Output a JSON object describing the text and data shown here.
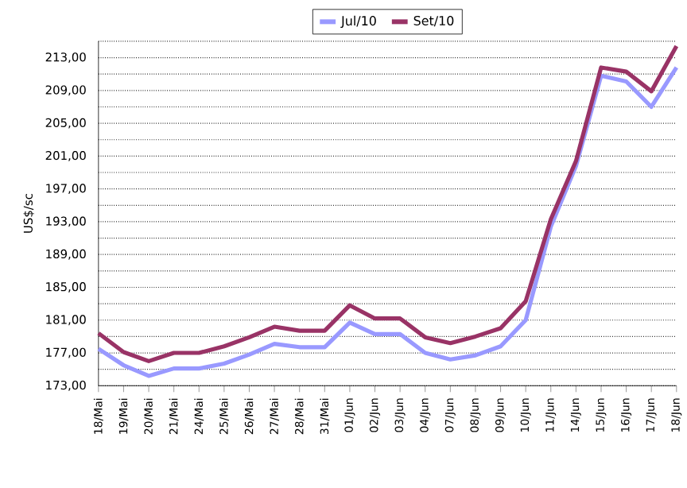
{
  "chart_data": {
    "type": "line",
    "ylabel": "US$/sc",
    "categories": [
      "18/Mai",
      "19/Mai",
      "20/Mai",
      "21/Mai",
      "24/Mai",
      "25/Mai",
      "26/Mai",
      "27/Mai",
      "28/Mai",
      "31/Mai",
      "01/Jun",
      "02/Jun",
      "03/Jun",
      "04/Jun",
      "07/Jun",
      "08/Jun",
      "09/Jun",
      "10/Jun",
      "11/Jun",
      "14/Jun",
      "15/Jun",
      "16/Jun",
      "17/Jun",
      "18/Jun"
    ],
    "series": [
      {
        "name": "Jul/10",
        "color": "#9999ff",
        "values": [
          177.5,
          175.5,
          174.2,
          175.1,
          175.1,
          175.7,
          176.8,
          178.1,
          177.7,
          177.7,
          180.7,
          179.3,
          179.3,
          177.0,
          176.2,
          176.7,
          177.8,
          181.0,
          192.4,
          199.8,
          210.8,
          210.1,
          207.0,
          211.8
        ]
      },
      {
        "name": "Set/10",
        "color": "#993366",
        "values": [
          179.4,
          177.1,
          176.0,
          177.0,
          177.0,
          177.8,
          178.9,
          180.2,
          179.7,
          179.7,
          182.8,
          181.2,
          181.2,
          178.9,
          178.2,
          179.0,
          180.0,
          183.3,
          193.3,
          200.4,
          211.8,
          211.3,
          208.9,
          214.4
        ]
      }
    ],
    "ylim": [
      173,
      215
    ],
    "yticks": [
      {
        "value": 173,
        "label": "173,00"
      },
      {
        "value": 175,
        "label": null
      },
      {
        "value": 177,
        "label": "177,00"
      },
      {
        "value": 179,
        "label": null
      },
      {
        "value": 181,
        "label": "181,00"
      },
      {
        "value": 183,
        "label": null
      },
      {
        "value": 185,
        "label": "185,00"
      },
      {
        "value": 187,
        "label": null
      },
      {
        "value": 189,
        "label": "189,00"
      },
      {
        "value": 191,
        "label": null
      },
      {
        "value": 193,
        "label": "193,00"
      },
      {
        "value": 195,
        "label": null
      },
      {
        "value": 197,
        "label": "197,00"
      },
      {
        "value": 199,
        "label": null
      },
      {
        "value": 201,
        "label": "201,00"
      },
      {
        "value": 203,
        "label": null
      },
      {
        "value": 205,
        "label": "205,00"
      },
      {
        "value": 207,
        "label": null
      },
      {
        "value": 209,
        "label": "209,00"
      },
      {
        "value": 211,
        "label": null
      },
      {
        "value": 213,
        "label": "213,00"
      },
      {
        "value": 215,
        "label": null
      }
    ],
    "grid": "y",
    "legend": "top",
    "marker": "none",
    "line_style": "solid"
  }
}
